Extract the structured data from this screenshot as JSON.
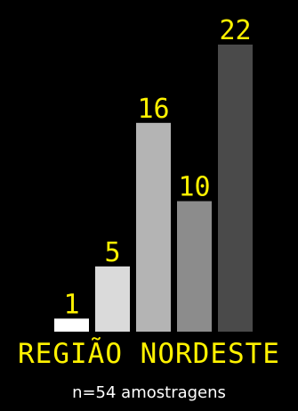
{
  "chart_data": {
    "type": "bar",
    "title": "REGIÃO NORDESTE",
    "subtitle": "n=54 amostragens",
    "values": [
      1,
      5,
      16,
      10,
      22
    ],
    "value_labels": [
      "1",
      "5",
      "16",
      "10",
      "22"
    ],
    "bar_colors": [
      "#FFFFFF",
      "#DADADA",
      "#B4B4B4",
      "#8C8C8C",
      "#4A4A4A"
    ],
    "label_color": "#FFF200",
    "background": "#000000",
    "grid": false,
    "legend": "none"
  }
}
